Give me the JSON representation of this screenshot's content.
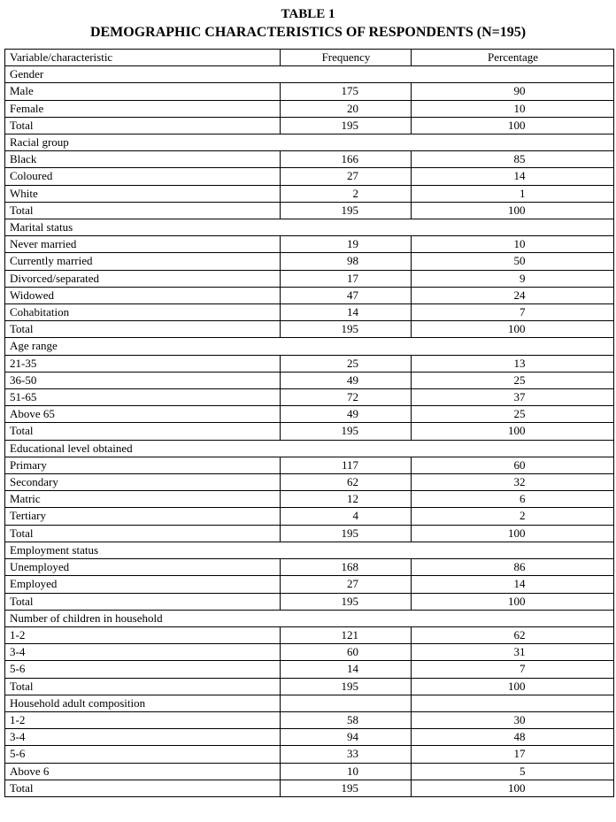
{
  "title": {
    "line1": "TABLE 1",
    "line2": "DEMOGRAPHIC CHARACTERISTICS OF RESPONDENTS (N=195)"
  },
  "table": {
    "headers": [
      "Variable/characteristic",
      "Frequency",
      "Percentage"
    ],
    "sections": [
      {
        "label": "Gender",
        "span": true,
        "rows": [
          {
            "label": "Male",
            "frequency": "175",
            "percentage": "90"
          },
          {
            "label": "Female",
            "frequency": "20",
            "percentage": "10"
          },
          {
            "label": "Total",
            "frequency": "195",
            "percentage": "100"
          }
        ]
      },
      {
        "label": "Racial group",
        "span": true,
        "rows": [
          {
            "label": "Black",
            "frequency": "166",
            "percentage": "85"
          },
          {
            "label": "Coloured",
            "frequency": "27",
            "percentage": "14"
          },
          {
            "label": "White",
            "frequency": "2",
            "percentage": "1"
          },
          {
            "label": "Total",
            "frequency": "195",
            "percentage": "100"
          }
        ]
      },
      {
        "label": "Marital status",
        "span": true,
        "rows": [
          {
            "label": "Never married",
            "frequency": "19",
            "percentage": "10"
          },
          {
            "label": "Currently married",
            "frequency": "98",
            "percentage": "50"
          },
          {
            "label": "Divorced/separated",
            "frequency": "17",
            "percentage": "9"
          },
          {
            "label": "Widowed",
            "frequency": "47",
            "percentage": "24"
          },
          {
            "label": "Cohabitation",
            "frequency": "14",
            "percentage": "7"
          },
          {
            "label": "Total",
            "frequency": "195",
            "percentage": "100"
          }
        ]
      },
      {
        "label": "Age range",
        "span": true,
        "rows": [
          {
            "label": "21-35",
            "frequency": "25",
            "percentage": "13"
          },
          {
            "label": "36-50",
            "frequency": "49",
            "percentage": "25"
          },
          {
            "label": "51-65",
            "frequency": "72",
            "percentage": "37"
          },
          {
            "label": "Above 65",
            "frequency": "49",
            "percentage": "25"
          },
          {
            "label": "Total",
            "frequency": "195",
            "percentage": "100"
          }
        ]
      },
      {
        "label": "Educational level obtained",
        "span": true,
        "rows": [
          {
            "label": "Primary",
            "frequency": "117",
            "percentage": "60"
          },
          {
            "label": "Secondary",
            "frequency": "62",
            "percentage": "32"
          },
          {
            "label": "Matric",
            "frequency": "12",
            "percentage": "6"
          },
          {
            "label": "Tertiary",
            "frequency": "4",
            "percentage": "2"
          },
          {
            "label": "Total",
            "frequency": "195",
            "percentage": "100"
          }
        ]
      },
      {
        "label": "Employment status",
        "span": true,
        "rows": [
          {
            "label": "Unemployed",
            "frequency": "168",
            "percentage": "86"
          },
          {
            "label": "Employed",
            "frequency": "27",
            "percentage": "14"
          },
          {
            "label": "Total",
            "frequency": "195",
            "percentage": "100"
          }
        ]
      },
      {
        "label": "Number of children in household",
        "span": true,
        "rows": [
          {
            "label": "1-2",
            "frequency": "121",
            "percentage": "62"
          },
          {
            "label": "3-4",
            "frequency": "60",
            "percentage": "31"
          },
          {
            "label": "5-6",
            "frequency": "14",
            "percentage": "7"
          },
          {
            "label": "Total",
            "frequency": "195",
            "percentage": "100"
          }
        ]
      },
      {
        "label": "Household adult composition",
        "span": false,
        "rows": [
          {
            "label": "1-2",
            "frequency": "58",
            "percentage": "30"
          },
          {
            "label": "3-4",
            "frequency": "94",
            "percentage": "48"
          },
          {
            "label": "5-6",
            "frequency": "33",
            "percentage": "17"
          },
          {
            "label": "Above 6",
            "frequency": "10",
            "percentage": "5"
          },
          {
            "label": "Total",
            "frequency": "195",
            "percentage": "100"
          }
        ]
      }
    ]
  }
}
